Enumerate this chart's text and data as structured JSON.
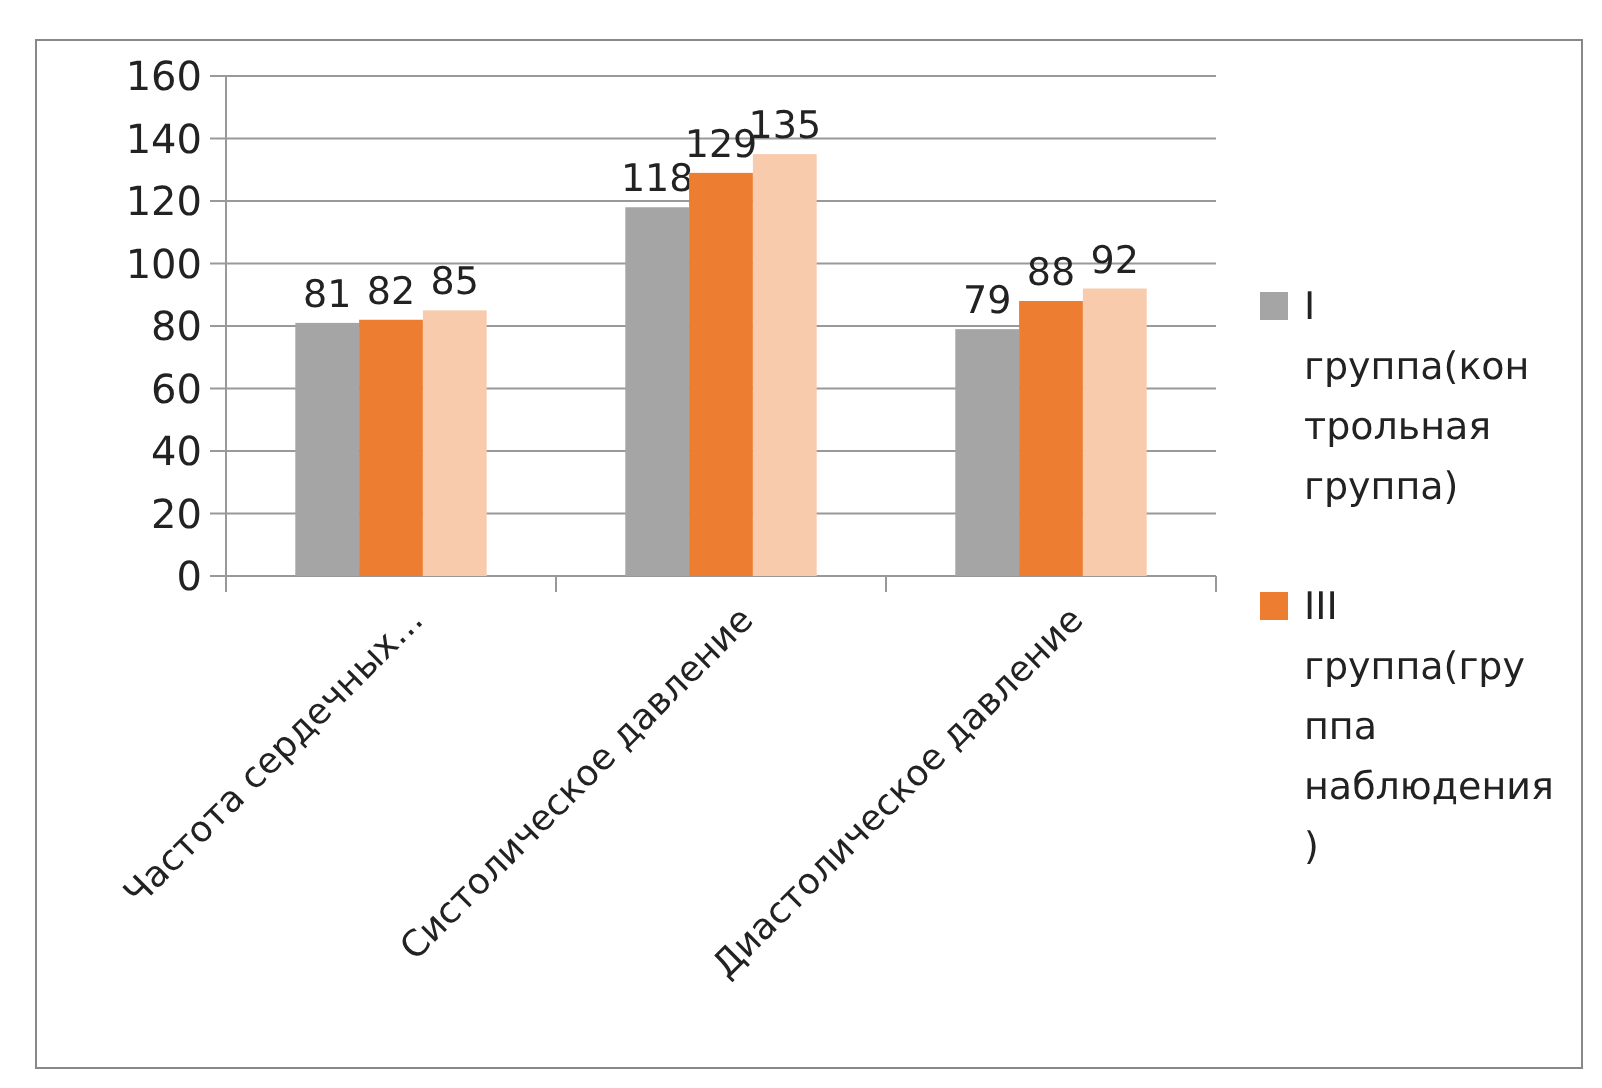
{
  "chart_data": {
    "type": "bar",
    "categories": [
      "Частота сердечных...",
      "Систолическое давление",
      "Диастолическое давление"
    ],
    "series": [
      {
        "name": "I группа(контрольная группа)",
        "color": "#a5a5a5",
        "values": [
          81,
          118,
          79
        ]
      },
      {
        "name": "III группа(группа наблюдения)",
        "color": "#ed7d31",
        "values": [
          82,
          129,
          88
        ]
      },
      {
        "color": "#f8cbad",
        "values": [
          85,
          135,
          92
        ]
      }
    ],
    "ylim": [
      0,
      160
    ],
    "yticks": [
      0,
      20,
      40,
      60,
      80,
      100,
      120,
      140,
      160
    ],
    "grid": "y",
    "legend": "right",
    "data_labels": true
  }
}
